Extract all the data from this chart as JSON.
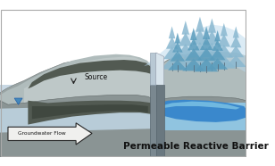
{
  "bg_color": "#ffffff",
  "title": "Permeable Reactive Barrier",
  "title_fontsize": 7.5,
  "source_label": "Source",
  "gw_flow_label": "Groundwater Flow",
  "colors": {
    "sky": "#ffffff",
    "ground_outer": "#9aa5a5",
    "ground_inner": "#b8c4c4",
    "ground_light": "#c8d2d2",
    "front_face_left": "#909a9a",
    "front_face_right": "#808888",
    "aquifer_bg": "#c8d8e4",
    "aquifer_right": "#c0d4e0",
    "plume_dark": "#525a52",
    "plume_mid": "#606860",
    "plume_light": "#7a847a",
    "treated_light": "#a8cce0",
    "treated_blue": "#3a88cc",
    "treated_mid": "#5aa0d4",
    "barrier_dark": "#888f98",
    "barrier_light": "#c8d4dc",
    "barrier_white": "#dce8f0",
    "tree_light": "#8ab4cc",
    "tree_mid": "#5090b8",
    "tree_dark": "#2870a8",
    "tree_bg": "#a8cce0",
    "arrow_fill": "#f0f0ee",
    "arrow_stroke": "#252525",
    "text_dark": "#1a1a1a",
    "water_tri": "#4488bb"
  }
}
